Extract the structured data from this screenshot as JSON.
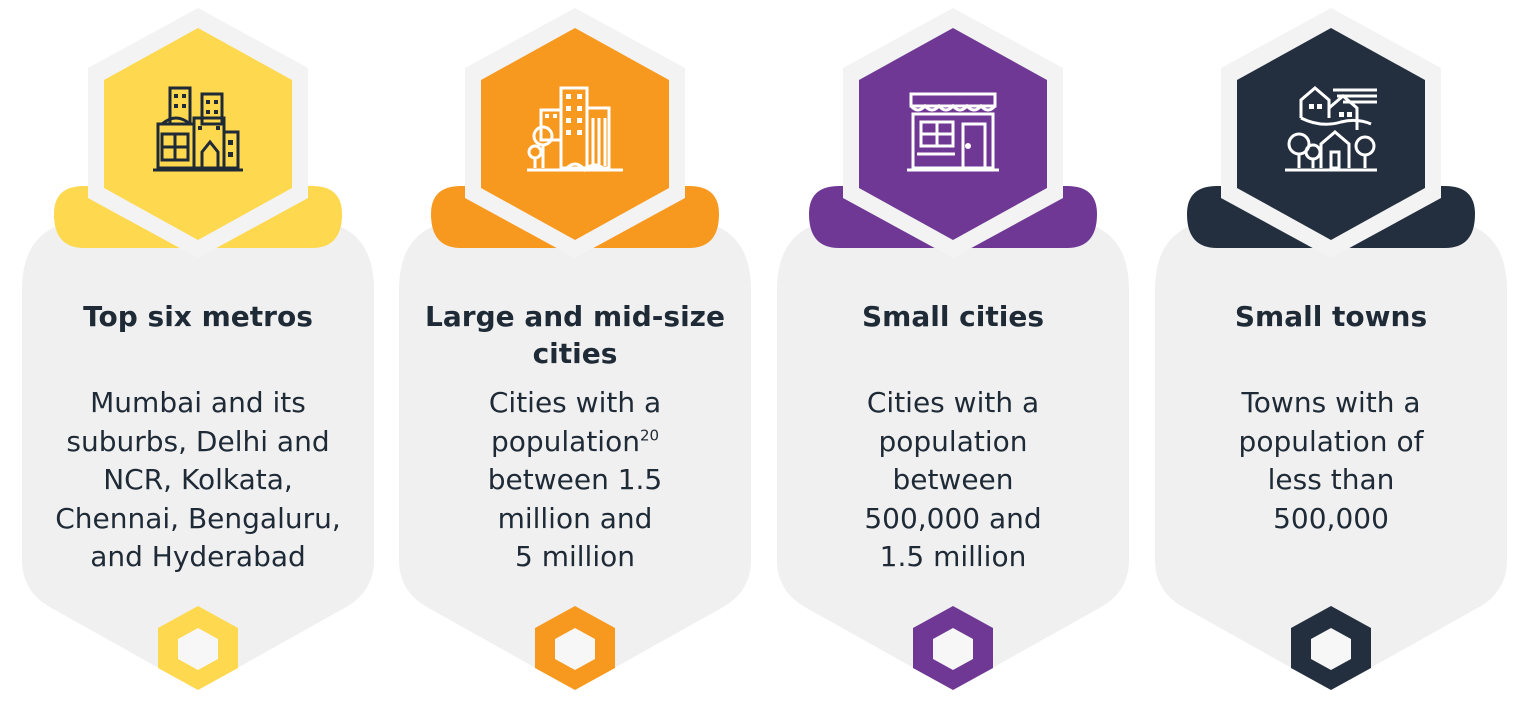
{
  "colors": {
    "card_bg": "#f0f0f0",
    "text": "#1f2a37",
    "yellow": "#fed84f",
    "orange": "#f7991f",
    "purple": "#6f3894",
    "navy": "#232f3e"
  },
  "segments": [
    {
      "accent": "#fed84f",
      "icon": "skyscrapers-icon",
      "title": "Top six metros",
      "lines": [
        "Mumbai and its",
        "suburbs, Delhi and",
        "NCR, Kolkata,",
        "Chennai, Bengaluru,",
        "and Hyderabad"
      ]
    },
    {
      "accent": "#f7991f",
      "icon": "city-buildings-icon",
      "title_line1": "Large and mid-size",
      "title_line2": "cities",
      "line1": "Cities with a",
      "line2_text": "population",
      "line2_sup": "20",
      "line3": "between 1.5",
      "line4": "million and",
      "line5": "5 million"
    },
    {
      "accent": "#6f3894",
      "icon": "storefront-icon",
      "title": "Small cities",
      "lines": [
        "Cities with a",
        "population",
        "between",
        "500,000 and",
        "1.5 million"
      ]
    },
    {
      "accent": "#232f3e",
      "icon": "town-houses-icon",
      "title": "Small towns",
      "lines": [
        "Towns with a",
        "population of",
        "less than",
        "500,000"
      ]
    }
  ]
}
